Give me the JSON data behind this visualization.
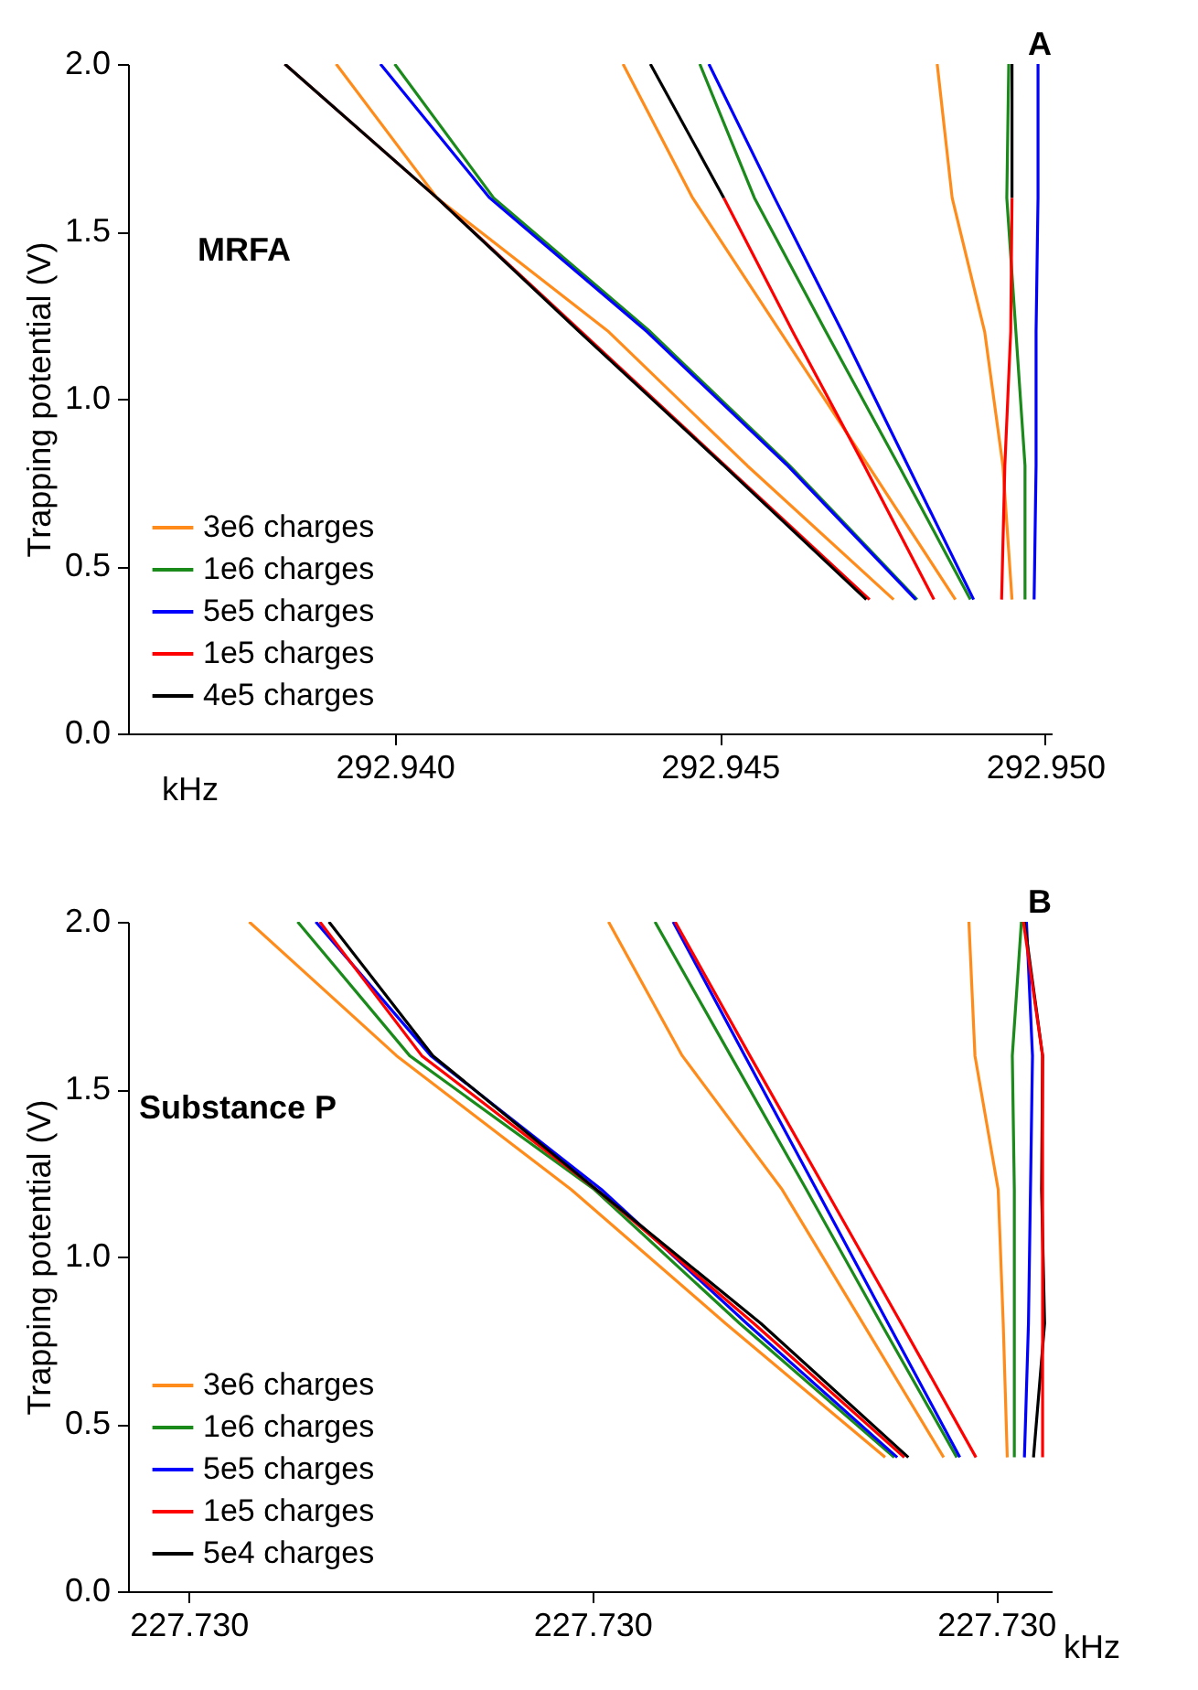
{
  "chart_data": [
    {
      "type": "line",
      "title": "A",
      "xlabel": "kHz",
      "ylabel": "Trapping potential (V)",
      "annotations": [
        "MRFA"
      ],
      "xlim": [
        292.9359,
        292.9501
      ],
      "xticks": [
        {
          "value": 292.94,
          "label": "292.940"
        },
        {
          "value": 292.945,
          "label": "292.945"
        },
        {
          "value": 292.95,
          "label": "292.950"
        }
      ],
      "ylim": [
        0,
        2
      ],
      "yticks": [
        {
          "value": 0,
          "label": "0.0"
        },
        {
          "value": 0.5,
          "label": "0.5"
        },
        {
          "value": 1,
          "label": "1.0"
        },
        {
          "value": 1.5,
          "label": "1.5"
        },
        {
          "value": 2,
          "label": "2.0"
        }
      ],
      "legend": "bottom left",
      "series": [
        {
          "name": "3e6 charges",
          "color": "#ff8c1a",
          "x": [
            292.94767,
            292.94542,
            292.94329,
            292.94065,
            292.9391
          ],
          "values": [
            0.4,
            0.8,
            1.2,
            1.6,
            2.0
          ]
        },
        {
          "name": "1e6 charges",
          "color": "#1a8a1a",
          "x": [
            292.94803,
            292.94607,
            292.94393,
            292.94152,
            292.94
          ],
          "values": [
            0.4,
            0.8,
            1.2,
            1.6,
            2.0
          ]
        },
        {
          "name": "5e5 charges",
          "color": "#0000ff",
          "x": [
            292.94801,
            292.94604,
            292.94388,
            292.94146,
            292.93978
          ],
          "values": [
            0.4,
            0.8,
            1.2,
            1.6,
            2.0
          ]
        },
        {
          "name": "1e5 charges",
          "color": "#ff0000",
          "x": [
            292.9473,
            292.94508,
            292.94287,
            292.94065,
            292.93831
          ],
          "values": [
            0.4,
            0.8,
            1.2,
            1.6,
            2.0
          ]
        },
        {
          "name": "4e5 charges",
          "color": "#000000",
          "x": [
            292.94725,
            292.94506,
            292.94284,
            292.94065,
            292.93831
          ],
          "values": [
            0.4,
            0.8,
            1.2,
            1.6,
            2.0
          ]
        },
        {
          "color": "#ff8c1a",
          "x": [
            292.94862,
            292.94728,
            292.94593,
            292.94458,
            292.94351
          ],
          "values": [
            0.4,
            0.8,
            1.2,
            1.6,
            2.0
          ]
        },
        {
          "color": "#1a8a1a",
          "x": [
            292.94885,
            292.94775,
            292.94663,
            292.94553,
            292.94469
          ],
          "values": [
            0.4,
            0.8,
            1.2,
            1.6,
            2.0
          ]
        },
        {
          "color": "#0000ff",
          "x": [
            292.9489,
            292.94789,
            292.94688,
            292.94584,
            292.94483
          ],
          "values": [
            0.4,
            0.8,
            1.2,
            1.6,
            2.0
          ]
        },
        {
          "color": "#000000",
          "x": [
            292.94506,
            292.94393
          ],
          "values": [
            1.6,
            2.0
          ]
        },
        {
          "color": "#ff0000",
          "x": [
            292.94829,
            292.94722,
            292.94612,
            292.94506
          ],
          "values": [
            0.4,
            0.8,
            1.2,
            1.6
          ]
        },
        {
          "color": "#ff8c1a",
          "x": [
            292.94949,
            292.94935,
            292.94907,
            292.94857,
            292.94834
          ],
          "values": [
            0.4,
            0.8,
            1.2,
            1.6,
            2.0
          ]
        },
        {
          "color": "#1a8a1a",
          "x": [
            292.94969,
            292.94969,
            292.94955,
            292.94941,
            292.94944
          ],
          "values": [
            0.4,
            0.8,
            1.2,
            1.6,
            2.0
          ]
        },
        {
          "color": "#000000",
          "x": [
            292.94949,
            292.94949
          ],
          "values": [
            1.6,
            2.0
          ]
        },
        {
          "color": "#ff0000",
          "x": [
            292.94933,
            292.94938,
            292.94947,
            292.94949
          ],
          "values": [
            0.4,
            0.8,
            1.2,
            1.6
          ]
        },
        {
          "color": "#0000ff",
          "x": [
            292.94983,
            292.94986,
            292.94986,
            292.94989,
            292.94989
          ],
          "values": [
            0.4,
            0.8,
            1.2,
            1.6,
            2.0
          ]
        }
      ]
    },
    {
      "type": "line",
      "title": "B",
      "xlabel": "kHz",
      "ylabel": "Trapping potential (V)",
      "annotations": [
        "Substance P"
      ],
      "xlim": [
        227.72954,
        227.730455
      ],
      "xticks": [
        {
          "value": 227.7296,
          "label": "227.730"
        },
        {
          "value": 227.73,
          "label": "227.730"
        },
        {
          "value": 227.7304,
          "label": "227.730"
        }
      ],
      "ylim": [
        0,
        2
      ],
      "yticks": [
        {
          "value": 0,
          "label": "0.0"
        },
        {
          "value": 0.5,
          "label": "0.5"
        },
        {
          "value": 1,
          "label": "1.0"
        },
        {
          "value": 1.5,
          "label": "1.5"
        },
        {
          "value": 2,
          "label": "2.0"
        }
      ],
      "legend": "bottom left",
      "series": [
        {
          "name": "3e6 charges",
          "color": "#ff8c1a",
          "x": [
            227.73029,
            227.730132,
            227.729979,
            227.729806,
            227.72966
          ],
          "values": [
            0.4,
            0.8,
            1.2,
            1.6,
            2.0
          ]
        },
        {
          "name": "1e6 charges",
          "color": "#1a8a1a",
          "x": [
            227.730299,
            227.730146,
            227.730002,
            227.729819,
            227.729708
          ],
          "values": [
            0.4,
            0.8,
            1.2,
            1.6,
            2.0
          ]
        },
        {
          "name": "5e5 charges",
          "color": "#0000ff",
          "x": [
            227.730302,
            227.730153,
            227.730009,
            227.72984,
            227.729726
          ],
          "values": [
            0.4,
            0.8,
            1.2,
            1.6,
            2.0
          ]
        },
        {
          "name": "1e5 charges",
          "color": "#ff0000",
          "x": [
            227.730309,
            227.73016,
            227.730004,
            227.729831,
            227.72973
          ],
          "values": [
            0.4,
            0.8,
            1.2,
            1.6,
            2.0
          ]
        },
        {
          "name": "5e4 charges",
          "color": "#000000",
          "x": [
            227.730313,
            227.730167,
            227.730004,
            227.729842,
            227.729739
          ],
          "values": [
            0.4,
            0.8,
            1.2,
            1.6,
            2.0
          ]
        },
        {
          "color": "#ff8c1a",
          "x": [
            227.730348,
            227.730268,
            227.730188,
            227.730089,
            227.730016
          ],
          "values": [
            0.4,
            0.8,
            1.2,
            1.6,
            2.0
          ]
        },
        {
          "color": "#1a8a1a",
          "x": [
            227.730361,
            227.730286,
            227.730212,
            227.730137,
            227.730062
          ],
          "values": [
            0.4,
            0.8,
            1.2,
            1.6,
            2.0
          ]
        },
        {
          "color": "#0000ff",
          "x": [
            227.730364,
            227.730293,
            227.730222,
            227.730151,
            227.73008
          ],
          "values": [
            0.4,
            0.8,
            1.2,
            1.6,
            2.0
          ]
        },
        {
          "color": "#ff0000",
          "x": [
            227.73038,
            227.730306,
            227.730231,
            227.730156,
            227.730082
          ],
          "values": [
            0.4,
            0.8,
            1.2,
            1.6,
            2.0
          ]
        },
        {
          "color": "#ff8c1a",
          "x": [
            227.730411,
            227.730407,
            227.730402,
            227.730379,
            227.730373
          ],
          "values": [
            0.4,
            0.8,
            1.2,
            1.6,
            2.0
          ]
        },
        {
          "color": "#1a8a1a",
          "x": [
            227.730418,
            227.730418,
            227.730418,
            227.730416,
            227.730425
          ],
          "values": [
            0.4,
            0.8,
            1.2,
            1.6,
            2.0
          ]
        },
        {
          "color": "#0000ff",
          "x": [
            227.730428,
            227.730432,
            227.730434,
            227.730436,
            227.73043
          ],
          "values": [
            0.4,
            0.8,
            1.2,
            1.6,
            2.0
          ]
        },
        {
          "color": "#000000",
          "x": [
            227.730437,
            227.730448,
            227.730445,
            227.730446,
            227.730428
          ],
          "values": [
            0.4,
            0.8,
            1.2,
            1.6,
            2.0
          ]
        },
        {
          "color": "#ff0000",
          "x": [
            227.730446,
            227.730446,
            227.730446,
            227.730446,
            227.730427
          ],
          "values": [
            0.4,
            0.8,
            1.2,
            1.6,
            2.0
          ]
        }
      ]
    }
  ]
}
